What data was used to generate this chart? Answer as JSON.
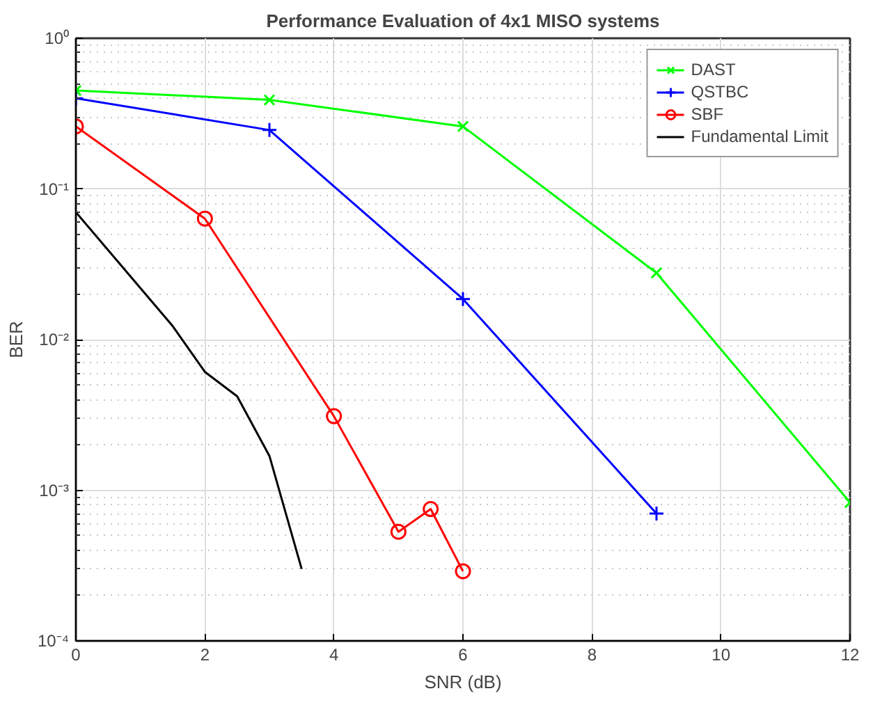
{
  "chart_data": {
    "type": "line",
    "title": "Performance Evaluation of 4x1 MISO systems",
    "xlabel": "SNR (dB)",
    "ylabel": "BER",
    "log": "y",
    "grid": true,
    "legend": "top right",
    "line_style": "solid",
    "xlim": [
      0,
      12
    ],
    "xticks": [
      0,
      2,
      4,
      6,
      8,
      10,
      12
    ],
    "ylim": [
      0.0001,
      1
    ],
    "yticks": [
      {
        "value": 0.0001,
        "label": "10⁻⁴"
      },
      {
        "value": 0.001,
        "label": "10⁻³"
      },
      {
        "value": 0.01,
        "label": "10⁻²"
      },
      {
        "value": 0.1,
        "label": "10⁻¹"
      },
      {
        "value": 1,
        "label": "10⁰"
      }
    ],
    "series": [
      {
        "name": "DAST",
        "color": "#00ff00",
        "marker": "x",
        "x": [
          0,
          3,
          6,
          9,
          12
        ],
        "values": [
          0.45,
          0.39,
          0.26,
          0.0277,
          0.00083
        ]
      },
      {
        "name": "QSTBC",
        "color": "#0000ff",
        "marker": "cross",
        "x": [
          0,
          3,
          6,
          9
        ],
        "values": [
          0.4,
          0.246,
          0.0186,
          0.0007
        ]
      },
      {
        "name": "SBF",
        "color": "#ff0000",
        "marker": "circle",
        "x": [
          0,
          2,
          4,
          5,
          5.5,
          6
        ],
        "values": [
          0.26,
          0.0635,
          0.0031,
          0.00053,
          0.00075,
          0.00029
        ]
      },
      {
        "name": "Fundamental Limit",
        "color": "#000000",
        "marker": "none",
        "x": [
          0,
          1.5,
          2,
          2.5,
          3,
          3.5
        ],
        "values": [
          0.07,
          0.0123,
          0.0061,
          0.0042,
          0.00169,
          0.0003
        ]
      }
    ]
  }
}
